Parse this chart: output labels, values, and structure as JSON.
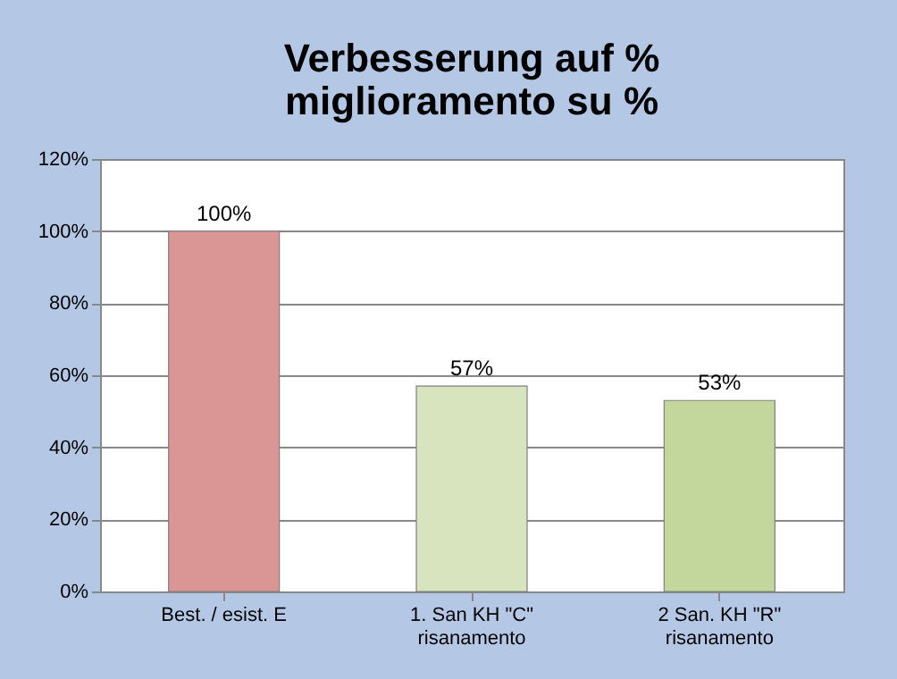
{
  "chart_data": {
    "type": "bar",
    "title": "Verbesserung auf %\nmiglioramento su %",
    "categories": [
      "Best. / esist.          E",
      "1. San KH \"C\"\nrisanamento",
      "2 San. KH \"R\"\nrisanamento"
    ],
    "values": [
      100,
      57,
      53
    ],
    "colors": [
      "#d99694",
      "#d7e4bd",
      "#c3d69b"
    ],
    "value_labels": [
      "100%",
      "57%",
      "53%"
    ],
    "ylim": [
      0,
      120
    ],
    "yticks": [
      {
        "value": 0,
        "label": "0%"
      },
      {
        "value": 20,
        "label": "20%"
      },
      {
        "value": 40,
        "label": "40%"
      },
      {
        "value": 60,
        "label": "60%"
      },
      {
        "value": 80,
        "label": "80%"
      },
      {
        "value": 100,
        "label": "100%"
      },
      {
        "value": 120,
        "label": "120%"
      }
    ],
    "grid": "y"
  }
}
